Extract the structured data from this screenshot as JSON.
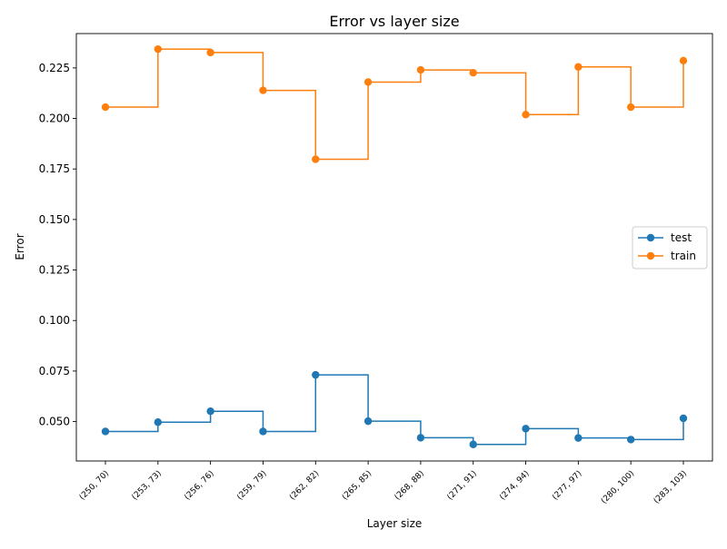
{
  "chart_data": {
    "type": "line",
    "title": "Error vs layer size",
    "xlabel": "Layer size",
    "ylabel": "Error",
    "categories": [
      "(250, 70)",
      "(253, 73)",
      "(256, 76)",
      "(259, 79)",
      "(262, 82)",
      "(265, 85)",
      "(268, 88)",
      "(271, 91)",
      "(274, 94)",
      "(277, 97)",
      "(280, 100)",
      "(283, 103)"
    ],
    "ylim": [
      0.0305,
      0.242
    ],
    "yticks": [
      0.05,
      0.075,
      0.1,
      0.125,
      0.15,
      0.175,
      0.2,
      0.225
    ],
    "ytick_labels": [
      "0.050",
      "0.075",
      "0.100",
      "0.125",
      "0.150",
      "0.175",
      "0.200",
      "0.225"
    ],
    "step": "post",
    "markers": true,
    "grid": false,
    "legend_position": "center-right",
    "series": [
      {
        "name": "test",
        "color": "#1f77b4",
        "values": [
          0.0451,
          0.0497,
          0.0551,
          0.0451,
          0.0731,
          0.0502,
          0.042,
          0.0387,
          0.0465,
          0.0419,
          0.0411,
          0.0516
        ]
      },
      {
        "name": "train",
        "color": "#ff7f0e",
        "values": [
          0.2056,
          0.2343,
          0.2326,
          0.2139,
          0.1798,
          0.218,
          0.224,
          0.2226,
          0.2019,
          0.2255,
          0.2056,
          0.2286
        ]
      }
    ]
  }
}
